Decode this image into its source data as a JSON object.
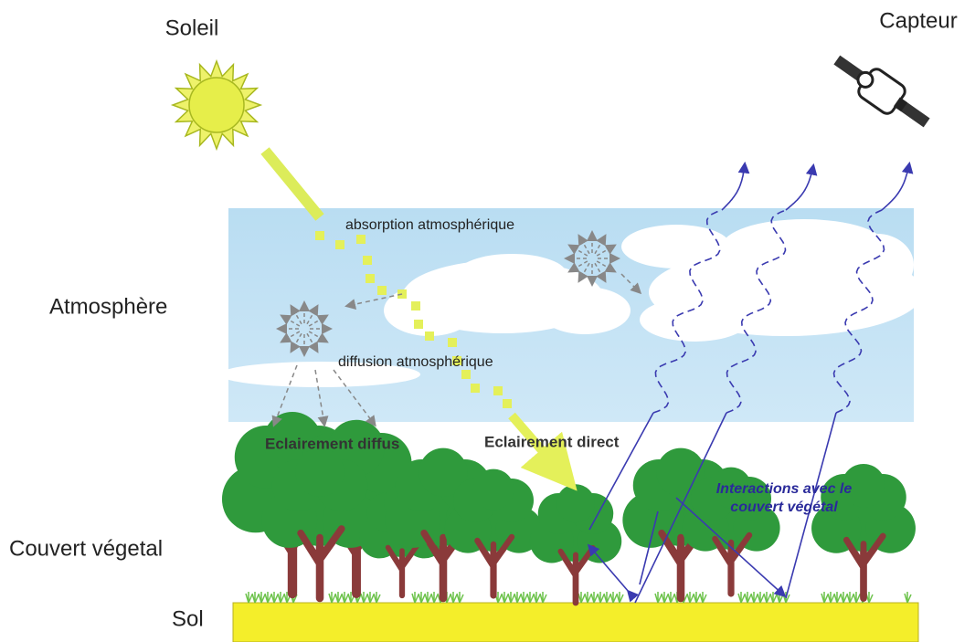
{
  "labels": {
    "sun": "Soleil",
    "sensor": "Capteur",
    "atmosphere": "Atmosphère",
    "canopy": "Couvert végetal",
    "soil": "Sol"
  },
  "annotations": {
    "absorption": "absorption atmosphérique",
    "diffusion": "diffusion atmosphérique",
    "diffuse_light": "Eclairement diffus",
    "direct_light": "Eclairement direct",
    "interactions": [
      "Interactions avec le",
      "couvert végétal"
    ]
  }
}
